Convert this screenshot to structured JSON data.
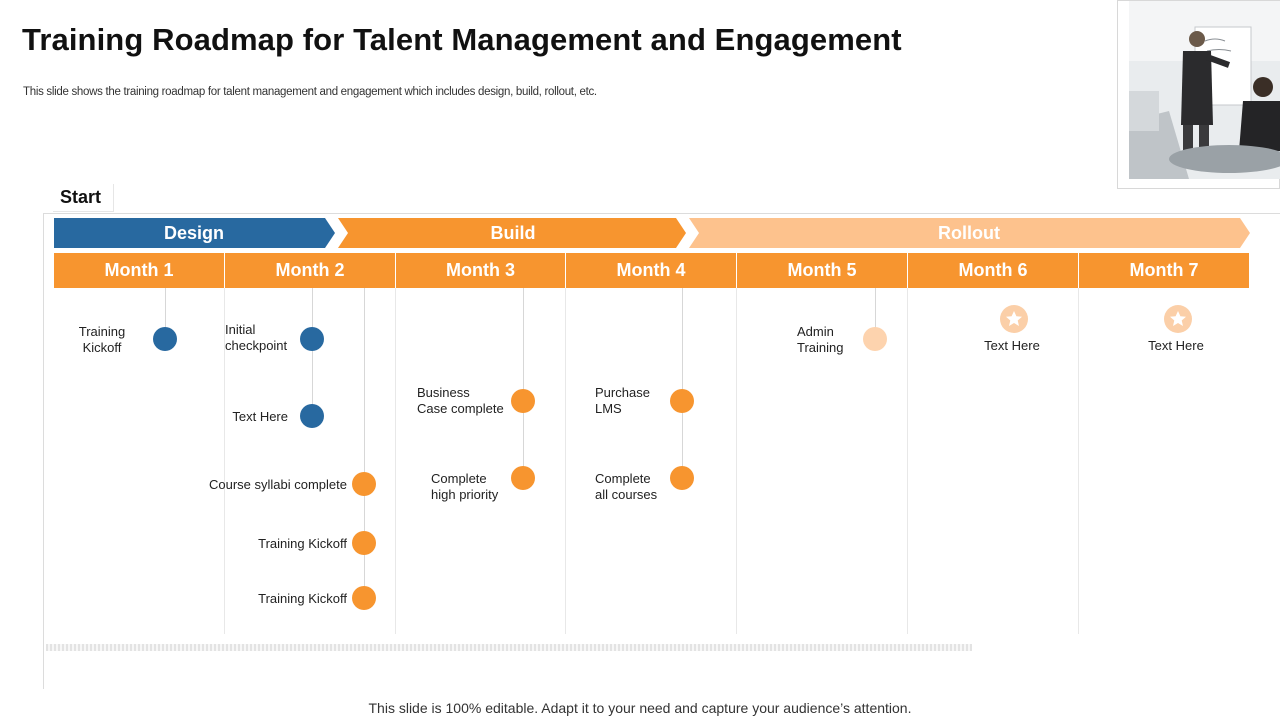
{
  "title": "Training Roadmap for Talent Management and Engagement",
  "subtitle": "This slide shows the training roadmap for talent management and engagement which includes design, build, rollout, etc.",
  "start_label": "Start",
  "phases": [
    {
      "label": "Design",
      "color": "#2869A0"
    },
    {
      "label": "Build",
      "color": "#F7952F"
    },
    {
      "label": "Rollout",
      "color": "#FDC28D"
    }
  ],
  "months": [
    "Month 1",
    "Month 2",
    "Month 3",
    "Month 4",
    "Month 5",
    "Month 6",
    "Month 7"
  ],
  "milestones": {
    "training_kickoff_m1": "Training\nKickoff",
    "initial_checkpoint": "Initial\ncheckpoint",
    "text_here_m2": "Text Here",
    "course_syllabi": "Course syllabi complete",
    "training_kickoff_a": "Training  Kickoff",
    "training_kickoff_b": "Training  Kickoff",
    "business_case": "Business\nCase complete",
    "complete_high_priority": "Complete\nhigh  priority",
    "purchase_lms": "Purchase\nLMS",
    "complete_all_courses": "Complete\nall courses",
    "admin_training": "Admin\nTraining",
    "text_here_m6": "Text Here",
    "text_here_m7": "Text Here"
  },
  "colors": {
    "design": "#2869A0",
    "build": "#F7952F",
    "rollout": "#FDC28D",
    "month_bar": "#F7952F"
  },
  "footer": "This slide is 100% editable. Adapt it to your need and capture your audience’s attention."
}
